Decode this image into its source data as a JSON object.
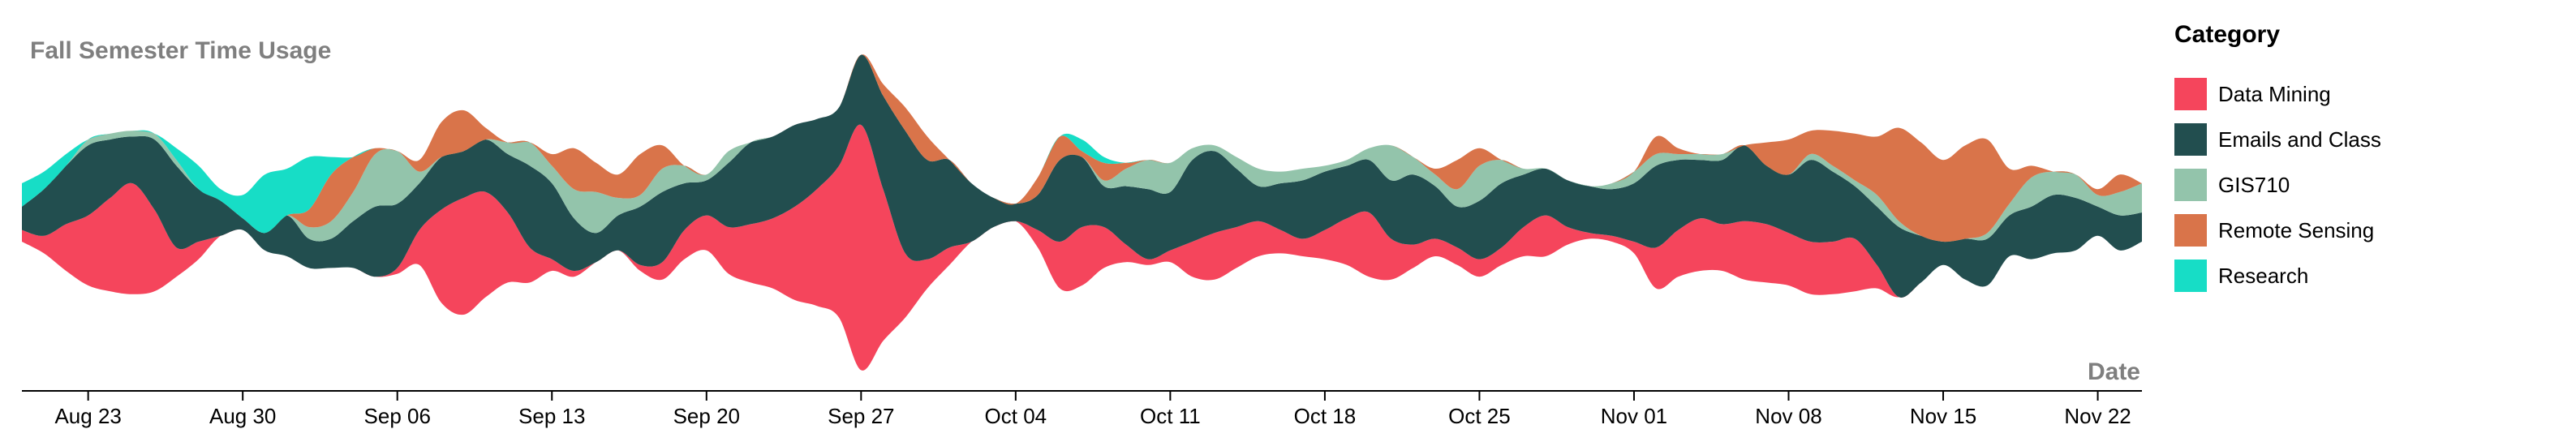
{
  "chart_data": {
    "type": "area",
    "subtype": "streamgraph",
    "title": "Fall Semester Time Usage",
    "xlabel": "Date",
    "ylabel": "",
    "x_range": [
      "2016-08-20",
      "2016-11-24"
    ],
    "x_ticks": [
      "Aug 23",
      "Aug 30",
      "Sep 06",
      "Sep 13",
      "Sep 20",
      "Sep 27",
      "Oct 04",
      "Oct 11",
      "Oct 18",
      "Oct 25",
      "Nov 01",
      "Nov 08",
      "Nov 15",
      "Nov 22"
    ],
    "x_tick_dates": [
      "2016-08-23",
      "2016-08-30",
      "2016-09-06",
      "2016-09-13",
      "2016-09-20",
      "2016-09-27",
      "2016-10-04",
      "2016-10-11",
      "2016-10-18",
      "2016-10-25",
      "2016-11-01",
      "2016-11-08",
      "2016-11-15",
      "2016-11-22"
    ],
    "legend_title": "Category",
    "legend_position": "right",
    "grid": false,
    "x": [
      "2016-08-20",
      "2016-08-21",
      "2016-08-22",
      "2016-08-23",
      "2016-08-24",
      "2016-08-25",
      "2016-08-26",
      "2016-08-27",
      "2016-08-28",
      "2016-08-29",
      "2016-08-30",
      "2016-08-31",
      "2016-09-01",
      "2016-09-02",
      "2016-09-03",
      "2016-09-04",
      "2016-09-05",
      "2016-09-06",
      "2016-09-07",
      "2016-09-08",
      "2016-09-09",
      "2016-09-10",
      "2016-09-11",
      "2016-09-12",
      "2016-09-13",
      "2016-09-14",
      "2016-09-15",
      "2016-09-16",
      "2016-09-17",
      "2016-09-18",
      "2016-09-19",
      "2016-09-20",
      "2016-09-21",
      "2016-09-22",
      "2016-09-23",
      "2016-09-24",
      "2016-09-25",
      "2016-09-26",
      "2016-09-27",
      "2016-09-28",
      "2016-09-29",
      "2016-09-30",
      "2016-10-01",
      "2016-10-02",
      "2016-10-03",
      "2016-10-04",
      "2016-10-05",
      "2016-10-06",
      "2016-10-07",
      "2016-10-08",
      "2016-10-09",
      "2016-10-10",
      "2016-10-11",
      "2016-10-12",
      "2016-10-13",
      "2016-10-14",
      "2016-10-15",
      "2016-10-16",
      "2016-10-17",
      "2016-10-18",
      "2016-10-19",
      "2016-10-20",
      "2016-10-21",
      "2016-10-22",
      "2016-10-23",
      "2016-10-24",
      "2016-10-25",
      "2016-10-26",
      "2016-10-27",
      "2016-10-28",
      "2016-10-29",
      "2016-10-30",
      "2016-10-31",
      "2016-11-01",
      "2016-11-02",
      "2016-11-03",
      "2016-11-04",
      "2016-11-05",
      "2016-11-06",
      "2016-11-07",
      "2016-11-08",
      "2016-11-09",
      "2016-11-10",
      "2016-11-11",
      "2016-11-12",
      "2016-11-13",
      "2016-11-14",
      "2016-11-15",
      "2016-11-16",
      "2016-11-17",
      "2016-11-18",
      "2016-11-19",
      "2016-11-20",
      "2016-11-21",
      "2016-11-22",
      "2016-11-23",
      "2016-11-24"
    ],
    "series": [
      {
        "name": "Data Mining",
        "color": "#f5455c",
        "values": [
          0.2,
          0.3,
          0.8,
          1.2,
          1.6,
          1.9,
          1.4,
          0.5,
          0.3,
          0.0,
          0.0,
          0.0,
          0.0,
          0.0,
          0.0,
          0.0,
          0.0,
          0.1,
          0.6,
          1.6,
          2.0,
          1.8,
          1.2,
          0.6,
          0.2,
          0.1,
          0.0,
          0.0,
          0.1,
          0.3,
          0.5,
          0.6,
          0.8,
          1.0,
          1.2,
          1.6,
          2.0,
          2.6,
          4.2,
          2.6,
          1.1,
          0.5,
          0.3,
          0.0,
          0.0,
          0.0,
          0.3,
          0.8,
          1.0,
          0.7,
          0.3,
          0.1,
          0.2,
          0.6,
          0.8,
          0.7,
          0.6,
          0.4,
          0.3,
          0.5,
          0.8,
          1.1,
          0.7,
          0.4,
          0.3,
          0.3,
          0.3,
          0.3,
          0.5,
          0.7,
          0.3,
          0.1,
          0.1,
          0.2,
          0.7,
          0.8,
          0.9,
          0.8,
          1.0,
          1.0,
          0.9,
          0.9,
          0.9,
          0.9,
          0.4,
          0.0,
          0.0,
          0.0,
          0.0,
          0.0,
          0.0,
          0.0,
          0.0,
          0.0,
          0.0,
          0.0,
          0.0
        ]
      },
      {
        "name": "Emails and Class",
        "color": "#224e4f",
        "values": [
          0.4,
          0.8,
          1.0,
          1.2,
          1.0,
          0.8,
          1.2,
          1.4,
          0.9,
          0.6,
          0.2,
          0.3,
          0.7,
          0.5,
          0.5,
          0.8,
          1.2,
          1.1,
          0.8,
          0.9,
          0.8,
          0.9,
          1.0,
          1.4,
          1.3,
          0.9,
          0.5,
          0.6,
          1.0,
          1.2,
          0.8,
          0.6,
          1.1,
          1.4,
          1.4,
          1.4,
          1.2,
          1.0,
          1.2,
          1.6,
          2.1,
          1.7,
          1.5,
          1.0,
          0.5,
          0.3,
          0.6,
          1.4,
          1.2,
          0.7,
          1.0,
          1.2,
          1.0,
          1.4,
          1.4,
          1.0,
          0.6,
          0.8,
          1.0,
          1.0,
          0.9,
          0.9,
          1.0,
          1.2,
          0.9,
          0.7,
          1.0,
          1.1,
          0.9,
          0.8,
          0.8,
          0.8,
          0.8,
          1.0,
          1.4,
          1.2,
          1.0,
          1.1,
          1.3,
          1.0,
          1.0,
          1.4,
          1.2,
          0.9,
          1.0,
          1.2,
          0.8,
          0.4,
          0.7,
          0.8,
          0.7,
          0.9,
          1.0,
          0.9,
          0.5,
          0.6,
          0.5
        ]
      },
      {
        "name": "GIS710",
        "color": "#93c4ab",
        "values": [
          0.0,
          0.0,
          0.0,
          0.1,
          0.1,
          0.1,
          0.1,
          0.1,
          0.0,
          0.0,
          0.0,
          0.0,
          0.0,
          0.2,
          0.3,
          0.5,
          0.9,
          0.9,
          0.2,
          0.0,
          0.0,
          0.0,
          0.2,
          0.4,
          0.3,
          0.5,
          0.7,
          0.3,
          0.2,
          0.4,
          0.3,
          0.1,
          0.2,
          0.0,
          0.0,
          0.0,
          0.0,
          0.0,
          0.0,
          0.0,
          0.0,
          0.0,
          0.0,
          0.0,
          0.0,
          0.0,
          0.0,
          0.0,
          0.0,
          0.1,
          0.3,
          0.5,
          0.5,
          0.2,
          0.1,
          0.2,
          0.3,
          0.2,
          0.2,
          0.1,
          0.1,
          0.2,
          0.6,
          0.3,
          0.2,
          0.3,
          0.6,
          0.4,
          0.1,
          0.0,
          0.0,
          0.0,
          0.1,
          0.2,
          0.2,
          0.1,
          0.1,
          0.1,
          0.0,
          0.0,
          0.0,
          0.1,
          0.1,
          0.1,
          0.2,
          0.1,
          0.0,
          0.0,
          0.0,
          0.1,
          0.2,
          0.5,
          0.4,
          0.4,
          0.2,
          0.4,
          0.5
        ]
      },
      {
        "name": "Remote Sensing",
        "color": "#d9744a",
        "values": [
          0.0,
          0.0,
          0.0,
          0.0,
          0.0,
          0.0,
          0.0,
          0.0,
          0.0,
          0.0,
          0.0,
          0.0,
          0.0,
          0.3,
          0.8,
          0.6,
          0.1,
          0.0,
          0.2,
          0.6,
          0.7,
          0.2,
          0.0,
          0.0,
          0.2,
          0.7,
          0.5,
          0.4,
          0.7,
          0.4,
          0.0,
          0.0,
          0.0,
          0.0,
          0.0,
          0.0,
          0.0,
          0.0,
          0.0,
          0.2,
          0.4,
          0.4,
          0.0,
          0.0,
          0.0,
          0.0,
          0.3,
          0.4,
          0.1,
          0.3,
          0.1,
          0.0,
          0.0,
          0.0,
          0.0,
          0.0,
          0.0,
          0.0,
          0.0,
          0.0,
          0.0,
          0.0,
          0.0,
          0.0,
          0.1,
          0.5,
          0.3,
          0.0,
          0.0,
          0.0,
          0.0,
          0.0,
          0.0,
          0.0,
          0.3,
          0.1,
          0.0,
          0.0,
          0.0,
          0.4,
          0.6,
          0.4,
          0.6,
          0.8,
          1.0,
          1.6,
          1.6,
          1.4,
          1.6,
          1.6,
          0.6,
          0.2,
          0.0,
          0.0,
          0.1,
          0.3,
          0.0
        ]
      },
      {
        "name": "Research",
        "color": "#17ddc6",
        "values": [
          0.4,
          0.3,
          0.2,
          0.0,
          0.0,
          0.0,
          0.0,
          0.2,
          0.4,
          0.2,
          0.4,
          1.0,
          0.8,
          0.9,
          0.3,
          0.0,
          0.0,
          0.0,
          0.0,
          0.0,
          0.0,
          0.0,
          0.0,
          0.0,
          0.0,
          0.0,
          0.0,
          0.0,
          0.0,
          0.0,
          0.0,
          0.0,
          0.0,
          0.0,
          0.0,
          0.0,
          0.0,
          0.0,
          0.0,
          0.0,
          0.0,
          0.0,
          0.0,
          0.0,
          0.0,
          0.0,
          0.0,
          0.0,
          0.2,
          0.1,
          0.0,
          0.0,
          0.0,
          0.0,
          0.0,
          0.0,
          0.0,
          0.0,
          0.0,
          0.0,
          0.0,
          0.0,
          0.0,
          0.0,
          0.0,
          0.0,
          0.0,
          0.0,
          0.0,
          0.0,
          0.0,
          0.0,
          0.0,
          0.0,
          0.0,
          0.0,
          0.0,
          0.0,
          0.0,
          0.0,
          0.0,
          0.0,
          0.0,
          0.0,
          0.0,
          0.0,
          0.0,
          0.0,
          0.0,
          0.0,
          0.0,
          0.0,
          0.0,
          0.0,
          0.0,
          0.0,
          0.0
        ]
      }
    ]
  }
}
